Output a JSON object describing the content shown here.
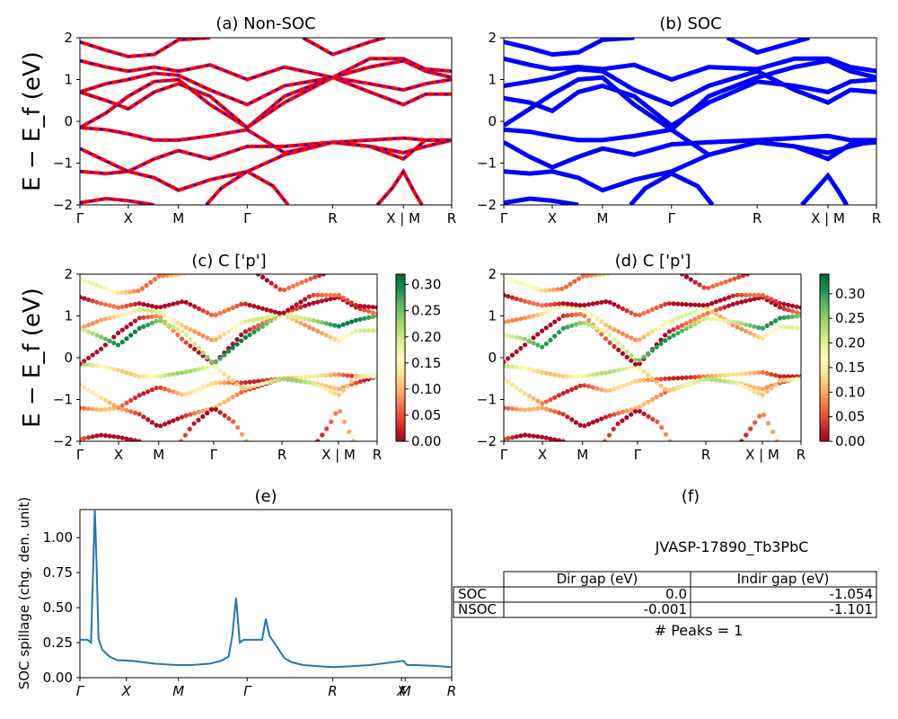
{
  "figure": {
    "ylabel_big": "E − E_f (eV)",
    "panel_a": {
      "title": "(a) Non-SOC"
    },
    "panel_b": {
      "title": "(b) SOC"
    },
    "panel_c": {
      "title": "(c)  C ['p']",
      "cbar_ticks": [
        "0.00",
        "0.05",
        "0.10",
        "0.15",
        "0.20",
        "0.25",
        "0.30"
      ]
    },
    "panel_d": {
      "title": "(d) C ['p']",
      "cbar_ticks": [
        "0.00",
        "0.05",
        "0.10",
        "0.15",
        "0.20",
        "0.25",
        "0.30"
      ]
    },
    "panel_e": {
      "title": "(e)",
      "ylabel": "SOC spillage (chg. den. unit)"
    },
    "panel_f": {
      "title": "(f)",
      "jid": "JVASP-17890_Tb3PbC",
      "table_headers": [
        "Dir gap (eV)",
        "Indir gap (eV)"
      ],
      "table_rows": [
        {
          "label": "SOC",
          "dir": "0.0",
          "indir": "-1.054"
        },
        {
          "label": "NSOC",
          "dir": "-0.001",
          "indir": "-1.101"
        }
      ],
      "peaks": "# Peaks = 1"
    },
    "band_ticks": [
      "Γ",
      "X",
      "M",
      "Γ",
      "R",
      "X | M",
      "R"
    ],
    "band_yticks": [
      "−2",
      "−1",
      "0",
      "1",
      "2"
    ],
    "spill_ticks": [
      "Γ",
      "X",
      "M",
      "Γ",
      "R",
      "X",
      "M",
      "R"
    ],
    "spill_yticks": [
      "0.00",
      "0.25",
      "0.50",
      "0.75",
      "1.00"
    ],
    "colors": {
      "nsoc_band": "#ff0000",
      "nsoc_dash": "#0000ff",
      "soc_band": "#0000ff",
      "spill_line": "#1f77b4"
    }
  },
  "chart_data": [
    {
      "type": "line",
      "title": "(a) Non-SOC",
      "ylabel": "E − E_f (eV)",
      "ylim": [
        -2,
        2
      ],
      "kpath": [
        "Γ",
        "X",
        "M",
        "Γ",
        "R",
        "X | M",
        "R"
      ],
      "kpos": [
        0,
        0.13,
        0.265,
        0.45,
        0.68,
        0.87,
        1.0
      ],
      "bands": [
        [
          [
            0,
            -1.2
          ],
          [
            0.07,
            -1.25
          ],
          [
            0.13,
            -1.2
          ],
          [
            0.2,
            -1.35
          ],
          [
            0.265,
            -1.65
          ],
          [
            0.35,
            -1.4
          ],
          [
            0.45,
            -1.2
          ],
          [
            0.55,
            -0.8
          ],
          [
            0.68,
            -0.5
          ],
          [
            0.78,
            -0.6
          ],
          [
            0.87,
            -0.75
          ],
          [
            0.93,
            -0.6
          ],
          [
            1.0,
            -0.45
          ]
        ],
        [
          [
            0,
            -0.65
          ],
          [
            0.07,
            -0.95
          ],
          [
            0.13,
            -1.2
          ],
          [
            0.2,
            -0.9
          ],
          [
            0.265,
            -0.7
          ],
          [
            0.35,
            -0.9
          ],
          [
            0.45,
            -0.6
          ],
          [
            0.55,
            -0.6
          ],
          [
            0.68,
            -0.5
          ],
          [
            0.78,
            -0.45
          ],
          [
            0.87,
            -0.4
          ],
          [
            0.93,
            -0.45
          ],
          [
            1.0,
            -0.45
          ]
        ],
        [
          [
            0,
            -0.15
          ],
          [
            0.07,
            -0.2
          ],
          [
            0.13,
            -0.3
          ],
          [
            0.2,
            -0.45
          ],
          [
            0.265,
            -0.45
          ],
          [
            0.35,
            -0.35
          ],
          [
            0.45,
            -0.2
          ],
          [
            0.55,
            -0.75
          ],
          [
            0.68,
            -0.5
          ],
          [
            0.78,
            -0.6
          ],
          [
            0.87,
            -0.9
          ],
          [
            0.93,
            -0.45
          ],
          [
            1.0,
            -0.45
          ]
        ],
        [
          [
            0,
            -0.15
          ],
          [
            0.07,
            0.2
          ],
          [
            0.13,
            0.6
          ],
          [
            0.2,
            0.95
          ],
          [
            0.265,
            1.0
          ],
          [
            0.35,
            0.4
          ],
          [
            0.45,
            -0.15
          ],
          [
            0.55,
            0.6
          ],
          [
            0.68,
            1.05
          ],
          [
            0.78,
            1.3
          ],
          [
            0.87,
            1.45
          ],
          [
            0.93,
            1.2
          ],
          [
            1.0,
            1.05
          ]
        ],
        [
          [
            0,
            0.7
          ],
          [
            0.07,
            0.9
          ],
          [
            0.13,
            1.0
          ],
          [
            0.2,
            1.15
          ],
          [
            0.265,
            1.1
          ],
          [
            0.35,
            0.75
          ],
          [
            0.45,
            0.4
          ],
          [
            0.55,
            0.85
          ],
          [
            0.68,
            1.05
          ],
          [
            0.78,
            0.7
          ],
          [
            0.87,
            0.4
          ],
          [
            0.93,
            0.65
          ],
          [
            1.0,
            0.65
          ]
        ],
        [
          [
            0,
            0.7
          ],
          [
            0.07,
            0.5
          ],
          [
            0.13,
            0.3
          ],
          [
            0.2,
            0.7
          ],
          [
            0.265,
            0.9
          ],
          [
            0.35,
            0.6
          ],
          [
            0.45,
            -0.15
          ],
          [
            0.55,
            0.45
          ],
          [
            0.68,
            1.05
          ],
          [
            0.78,
            0.9
          ],
          [
            0.87,
            0.75
          ],
          [
            0.93,
            0.9
          ],
          [
            1.0,
            1.0
          ]
        ],
        [
          [
            0,
            1.45
          ],
          [
            0.07,
            1.3
          ],
          [
            0.13,
            1.2
          ],
          [
            0.2,
            1.3
          ],
          [
            0.265,
            1.2
          ],
          [
            0.35,
            1.35
          ],
          [
            0.45,
            1.0
          ],
          [
            0.55,
            1.3
          ],
          [
            0.68,
            1.05
          ],
          [
            0.78,
            1.5
          ],
          [
            0.87,
            1.5
          ],
          [
            0.93,
            1.25
          ],
          [
            1.0,
            1.2
          ]
        ],
        [
          [
            0,
            1.9
          ],
          [
            0.07,
            1.7
          ],
          [
            0.13,
            1.55
          ],
          [
            0.2,
            1.6
          ],
          [
            0.265,
            1.95
          ],
          [
            0.35,
            2.0
          ]
        ],
        [
          [
            0.6,
            2.0
          ],
          [
            0.68,
            1.6
          ],
          [
            0.78,
            1.9
          ],
          [
            0.82,
            2.0
          ]
        ],
        [
          [
            0,
            -1.95
          ],
          [
            0.07,
            -1.85
          ],
          [
            0.13,
            -1.9
          ],
          [
            0.2,
            -2.0
          ]
        ],
        [
          [
            0.34,
            -2.0
          ],
          [
            0.38,
            -1.6
          ],
          [
            0.45,
            -1.2
          ],
          [
            0.52,
            -1.55
          ],
          [
            0.56,
            -2.0
          ]
        ],
        [
          [
            0.8,
            -2.0
          ],
          [
            0.84,
            -1.6
          ],
          [
            0.87,
            -1.2
          ],
          [
            0.9,
            -1.7
          ],
          [
            0.92,
            -2.0
          ]
        ]
      ]
    },
    {
      "type": "line",
      "title": "(b) SOC",
      "ylabel": "",
      "ylim": [
        -2,
        2
      ],
      "kpath": [
        "Γ",
        "X",
        "M",
        "Γ",
        "R",
        "X | M",
        "R"
      ],
      "kpos": [
        0,
        0.13,
        0.265,
        0.45,
        0.68,
        0.87,
        1.0
      ],
      "bands": [
        [
          [
            0,
            -1.2
          ],
          [
            0.07,
            -1.25
          ],
          [
            0.13,
            -1.2
          ],
          [
            0.2,
            -1.35
          ],
          [
            0.265,
            -1.65
          ],
          [
            0.35,
            -1.4
          ],
          [
            0.45,
            -1.2
          ],
          [
            0.55,
            -0.8
          ],
          [
            0.68,
            -0.5
          ],
          [
            0.78,
            -0.6
          ],
          [
            0.87,
            -0.75
          ],
          [
            0.93,
            -0.6
          ],
          [
            1.0,
            -0.45
          ]
        ],
        [
          [
            0,
            -0.5
          ],
          [
            0.07,
            -0.85
          ],
          [
            0.13,
            -1.1
          ],
          [
            0.2,
            -0.85
          ],
          [
            0.265,
            -0.65
          ],
          [
            0.35,
            -0.8
          ],
          [
            0.45,
            -0.55
          ],
          [
            0.55,
            -0.5
          ],
          [
            0.68,
            -0.45
          ],
          [
            0.78,
            -0.4
          ],
          [
            0.87,
            -0.35
          ],
          [
            0.93,
            -0.45
          ],
          [
            1.0,
            -0.45
          ]
        ],
        [
          [
            0,
            -0.2
          ],
          [
            0.07,
            -0.25
          ],
          [
            0.13,
            -0.35
          ],
          [
            0.2,
            -0.45
          ],
          [
            0.265,
            -0.45
          ],
          [
            0.35,
            -0.35
          ],
          [
            0.45,
            -0.2
          ],
          [
            0.55,
            -0.8
          ],
          [
            0.68,
            -0.5
          ],
          [
            0.78,
            -0.6
          ],
          [
            0.87,
            -0.9
          ],
          [
            0.93,
            -0.55
          ],
          [
            1.0,
            -0.5
          ]
        ],
        [
          [
            0,
            -0.1
          ],
          [
            0.07,
            0.3
          ],
          [
            0.13,
            0.65
          ],
          [
            0.2,
            1.0
          ],
          [
            0.265,
            1.05
          ],
          [
            0.35,
            0.4
          ],
          [
            0.45,
            -0.2
          ],
          [
            0.55,
            0.6
          ],
          [
            0.68,
            1.05
          ],
          [
            0.78,
            1.3
          ],
          [
            0.87,
            1.45
          ],
          [
            0.93,
            1.2
          ],
          [
            1.0,
            1.05
          ]
        ],
        [
          [
            0,
            0.85
          ],
          [
            0.07,
            0.95
          ],
          [
            0.13,
            1.05
          ],
          [
            0.2,
            1.25
          ],
          [
            0.265,
            1.2
          ],
          [
            0.35,
            0.75
          ],
          [
            0.45,
            0.4
          ],
          [
            0.55,
            0.85
          ],
          [
            0.68,
            1.2
          ],
          [
            0.78,
            0.75
          ],
          [
            0.87,
            0.45
          ],
          [
            0.93,
            0.75
          ],
          [
            1.0,
            0.7
          ]
        ],
        [
          [
            0,
            0.55
          ],
          [
            0.07,
            0.45
          ],
          [
            0.13,
            0.25
          ],
          [
            0.2,
            0.7
          ],
          [
            0.265,
            0.85
          ],
          [
            0.35,
            0.6
          ],
          [
            0.45,
            -0.1
          ],
          [
            0.55,
            0.45
          ],
          [
            0.68,
            0.95
          ],
          [
            0.78,
            0.85
          ],
          [
            0.87,
            0.7
          ],
          [
            0.93,
            0.95
          ],
          [
            1.0,
            1.0
          ]
        ],
        [
          [
            0,
            1.5
          ],
          [
            0.07,
            1.35
          ],
          [
            0.13,
            1.25
          ],
          [
            0.2,
            1.3
          ],
          [
            0.265,
            1.25
          ],
          [
            0.35,
            1.35
          ],
          [
            0.45,
            1.0
          ],
          [
            0.55,
            1.3
          ],
          [
            0.68,
            1.25
          ],
          [
            0.78,
            1.5
          ],
          [
            0.87,
            1.5
          ],
          [
            0.93,
            1.3
          ],
          [
            1.0,
            1.2
          ]
        ],
        [
          [
            0,
            1.9
          ],
          [
            0.07,
            1.75
          ],
          [
            0.13,
            1.6
          ],
          [
            0.2,
            1.65
          ],
          [
            0.265,
            1.95
          ],
          [
            0.35,
            2.0
          ]
        ],
        [
          [
            0.6,
            2.0
          ],
          [
            0.68,
            1.65
          ],
          [
            0.78,
            1.9
          ],
          [
            0.82,
            2.0
          ]
        ],
        [
          [
            0,
            -1.95
          ],
          [
            0.07,
            -1.85
          ],
          [
            0.13,
            -1.9
          ],
          [
            0.2,
            -2.0
          ]
        ],
        [
          [
            0.34,
            -2.0
          ],
          [
            0.38,
            -1.6
          ],
          [
            0.45,
            -1.25
          ],
          [
            0.52,
            -1.55
          ],
          [
            0.56,
            -2.0
          ]
        ],
        [
          [
            0.8,
            -2.0
          ],
          [
            0.84,
            -1.6
          ],
          [
            0.87,
            -1.3
          ],
          [
            0.9,
            -1.7
          ],
          [
            0.92,
            -2.0
          ]
        ]
      ]
    },
    {
      "type": "scatter",
      "title": "(c)  C ['p']",
      "ylim": [
        -2,
        2
      ],
      "clim": [
        0,
        0.32
      ],
      "note": "band-projected p-character shown as colored dots (RdYlGn colormap)"
    },
    {
      "type": "scatter",
      "title": "(d) C ['p']",
      "ylim": [
        -2,
        2
      ],
      "clim": [
        0,
        0.34
      ],
      "note": "band-projected p-character shown as colored dots (RdYlGn colormap)"
    },
    {
      "type": "line",
      "title": "(e)",
      "ylabel": "SOC spillage (chg. den. unit)",
      "ylim": [
        0,
        1.2
      ],
      "x": [
        0,
        0.02,
        0.03,
        0.04,
        0.045,
        0.05,
        0.06,
        0.08,
        0.1,
        0.14,
        0.2,
        0.26,
        0.3,
        0.35,
        0.38,
        0.4,
        0.41,
        0.42,
        0.43,
        0.44,
        0.48,
        0.49,
        0.5,
        0.51,
        0.53,
        0.55,
        0.57,
        0.6,
        0.65,
        0.68,
        0.72,
        0.78,
        0.84,
        0.87,
        0.88,
        0.9,
        0.95,
        1.0
      ],
      "values": [
        0.27,
        0.27,
        0.25,
        1.2,
        0.8,
        0.28,
        0.2,
        0.15,
        0.125,
        0.12,
        0.1,
        0.09,
        0.09,
        0.1,
        0.12,
        0.15,
        0.3,
        0.57,
        0.25,
        0.27,
        0.27,
        0.27,
        0.42,
        0.3,
        0.22,
        0.14,
        0.11,
        0.09,
        0.08,
        0.075,
        0.08,
        0.09,
        0.11,
        0.12,
        0.09,
        0.09,
        0.085,
        0.075
      ],
      "xticks": [
        "Γ",
        "X",
        "M",
        "Γ",
        "R",
        "X",
        "M",
        "R"
      ]
    }
  ]
}
